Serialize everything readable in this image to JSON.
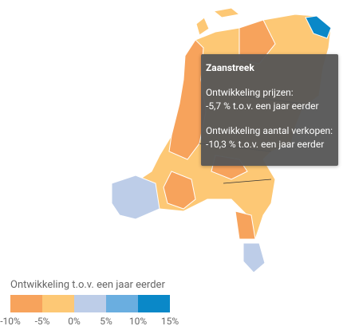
{
  "tooltip": {
    "title": "Zaanstreek",
    "lines": [
      "Ontwikkeling prijzen:",
      "-5,7 % t.o.v. een jaar eerder",
      "Ontwikkeling aantal verkopen:",
      "-10,3 % t.o.v. een jaar eerder"
    ]
  },
  "legend": {
    "title": "Ontwikkeling t.o.v. een jaar eerder",
    "colors": [
      "#f7a35c",
      "#fdc875",
      "#bdcde8",
      "#6aaee0",
      "#0a88c8"
    ],
    "ticks": [
      "-10%",
      "-5%",
      "0%",
      "5%",
      "10%",
      "15%"
    ]
  }
}
